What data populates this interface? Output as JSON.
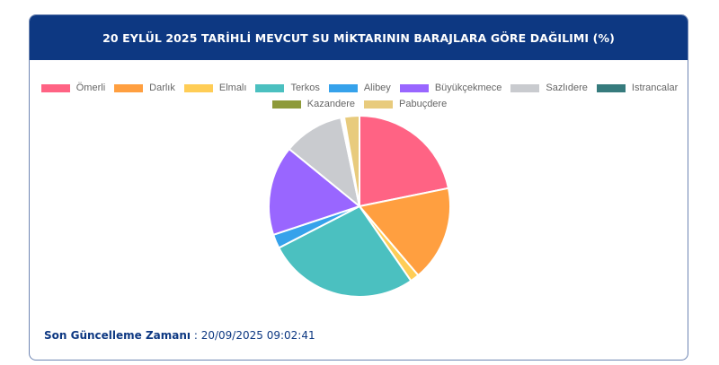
{
  "card": {
    "title": "20 EYLÜL 2025 TARİHLİ MEVCUT SU MİKTARININ BARAJLARA GÖRE DAĞILIMI (%)"
  },
  "legend": {
    "row1": [
      {
        "label": "Ömerli",
        "color": "#ff6384"
      },
      {
        "label": "Darlık",
        "color": "#ff9f40"
      },
      {
        "label": "Elmalı",
        "color": "#ffcd56"
      },
      {
        "label": "Terkos",
        "color": "#4bc0c0"
      },
      {
        "label": "Alibey",
        "color": "#36a2eb"
      },
      {
        "label": "Büyükçekmece",
        "color": "#9966ff"
      },
      {
        "label": "Sazlıdere",
        "color": "#c9cbcf"
      },
      {
        "label": "Istrancalar",
        "color": "#367b7d"
      }
    ],
    "row2": [
      {
        "label": "Kazandere",
        "color": "#8e9a3a"
      },
      {
        "label": "Pabuçdere",
        "color": "#e8cb7d"
      }
    ]
  },
  "footer": {
    "label": "Son Güncelleme Zamanı",
    "separator": " : ",
    "value": "20/09/2025 09:02:41"
  },
  "chart_data": {
    "type": "pie",
    "title": "20 EYLÜL 2025 TARİHLİ MEVCUT SU MİKTARININ BARAJLARA GÖRE DAĞILIMI (%)",
    "categories": [
      "Ömerli",
      "Darlık",
      "Elmalı",
      "Terkos",
      "Alibey",
      "Büyükçekmece",
      "Sazlıdere",
      "Istrancalar",
      "Kazandere",
      "Pabuçdere"
    ],
    "values": [
      21.8,
      17.0,
      1.6,
      27.0,
      2.5,
      16.0,
      10.8,
      0.3,
      0.3,
      2.7
    ],
    "colors": [
      "#ff6384",
      "#ff9f40",
      "#ffcd56",
      "#4bc0c0",
      "#36a2eb",
      "#9966ff",
      "#c9cbcf",
      "#367b7d",
      "#8e9a3a",
      "#e8cb7d"
    ],
    "legend_position": "top",
    "xlabel": "",
    "ylabel": ""
  }
}
